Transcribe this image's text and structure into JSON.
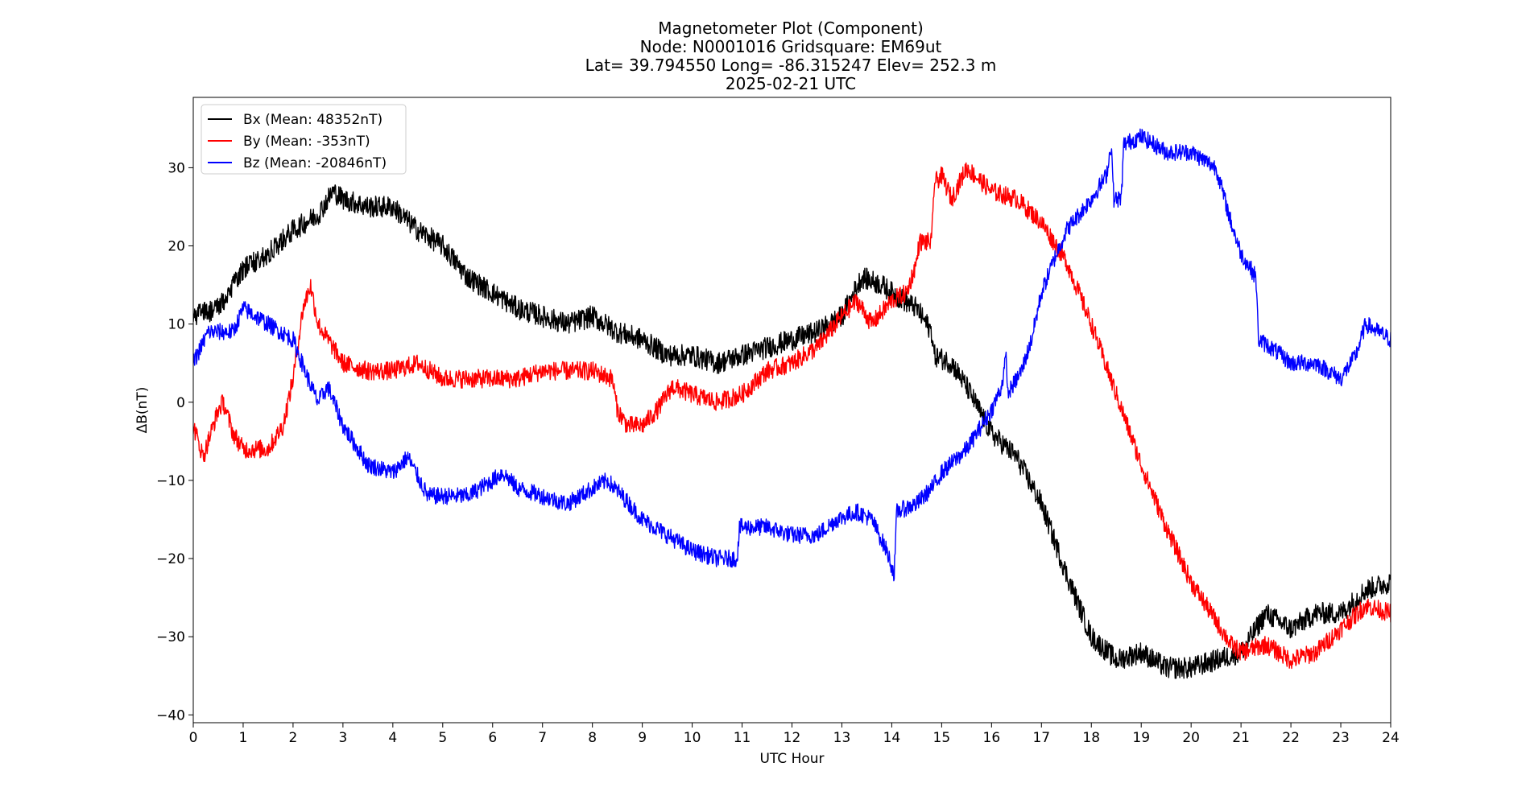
{
  "chart_data": {
    "type": "line",
    "title_lines": [
      "Magnetometer Plot (Component)",
      "Node:  N0001016     Gridsquare:  EM69ut",
      "Lat= 39.794550    Long= -86.315247    Elev= 252.3 m",
      "2025-02-21  UTC"
    ],
    "xlabel": "UTC Hour",
    "ylabel": "ΔB(nT)",
    "xlim": [
      0,
      24
    ],
    "ylim": [
      -41,
      39
    ],
    "xticks": [
      0,
      1,
      2,
      3,
      4,
      5,
      6,
      7,
      8,
      9,
      10,
      11,
      12,
      13,
      14,
      15,
      16,
      17,
      18,
      19,
      20,
      21,
      22,
      23,
      24
    ],
    "yticks": [
      -40,
      -30,
      -20,
      -10,
      0,
      10,
      20,
      30
    ],
    "legend_position": "top-left",
    "grid": false,
    "series": [
      {
        "name": "Bx (Mean: 48352nT)",
        "color": "#000000",
        "noise": 1.4,
        "points": [
          [
            0,
            11
          ],
          [
            0.5,
            12
          ],
          [
            1,
            17
          ],
          [
            1.5,
            19
          ],
          [
            2,
            22
          ],
          [
            2.5,
            24
          ],
          [
            2.8,
            27
          ],
          [
            3,
            26
          ],
          [
            3.5,
            25
          ],
          [
            4,
            25
          ],
          [
            4.5,
            22
          ],
          [
            5,
            20
          ],
          [
            5.5,
            16
          ],
          [
            6,
            14
          ],
          [
            6.5,
            12
          ],
          [
            7,
            11
          ],
          [
            7.5,
            10
          ],
          [
            8,
            11
          ],
          [
            8.5,
            9
          ],
          [
            9,
            8
          ],
          [
            9.5,
            6
          ],
          [
            10,
            6
          ],
          [
            10.5,
            5
          ],
          [
            11,
            6
          ],
          [
            11.5,
            7
          ],
          [
            12,
            8
          ],
          [
            12.5,
            9
          ],
          [
            13,
            11
          ],
          [
            13.4,
            16
          ],
          [
            13.8,
            15
          ],
          [
            14,
            14
          ],
          [
            14.5,
            12
          ],
          [
            14.8,
            9
          ],
          [
            14.85,
            6
          ],
          [
            15.2,
            5
          ],
          [
            15.5,
            2
          ],
          [
            16,
            -4
          ],
          [
            16.5,
            -7
          ],
          [
            17,
            -13
          ],
          [
            17.5,
            -22
          ],
          [
            18,
            -30
          ],
          [
            18.5,
            -33
          ],
          [
            19,
            -32
          ],
          [
            19.5,
            -34
          ],
          [
            20,
            -34
          ],
          [
            20.5,
            -33
          ],
          [
            21,
            -32
          ],
          [
            21.5,
            -27
          ],
          [
            22,
            -29
          ],
          [
            22.5,
            -27
          ],
          [
            23,
            -27
          ],
          [
            23.5,
            -24
          ],
          [
            24,
            -23
          ]
        ]
      },
      {
        "name": "By (Mean: -353nT)",
        "color": "#ff0000",
        "noise": 1.2,
        "points": [
          [
            0,
            -3
          ],
          [
            0.2,
            -7
          ],
          [
            0.5,
            -1
          ],
          [
            0.6,
            0
          ],
          [
            0.8,
            -4
          ],
          [
            1,
            -6
          ],
          [
            1.5,
            -6
          ],
          [
            1.8,
            -3
          ],
          [
            2,
            3
          ],
          [
            2.2,
            12
          ],
          [
            2.35,
            15
          ],
          [
            2.5,
            10
          ],
          [
            2.8,
            7
          ],
          [
            3,
            5
          ],
          [
            3.5,
            4
          ],
          [
            4,
            4
          ],
          [
            4.5,
            5
          ],
          [
            5,
            3
          ],
          [
            5.5,
            3
          ],
          [
            6,
            3
          ],
          [
            6.5,
            3
          ],
          [
            7,
            4
          ],
          [
            7.5,
            4
          ],
          [
            8,
            4
          ],
          [
            8.4,
            3
          ],
          [
            8.5,
            -1
          ],
          [
            8.7,
            -3
          ],
          [
            9,
            -3
          ],
          [
            9.3,
            -1
          ],
          [
            9.6,
            2
          ],
          [
            10,
            1
          ],
          [
            10.5,
            0
          ],
          [
            11,
            1
          ],
          [
            11.5,
            4
          ],
          [
            12,
            5
          ],
          [
            12.5,
            7
          ],
          [
            13,
            11
          ],
          [
            13.3,
            13
          ],
          [
            13.6,
            10
          ],
          [
            14,
            13
          ],
          [
            14.3,
            14
          ],
          [
            14.5,
            18
          ],
          [
            14.55,
            20.5
          ],
          [
            14.8,
            20.5
          ],
          [
            14.85,
            28
          ],
          [
            15,
            29
          ],
          [
            15.2,
            26
          ],
          [
            15.5,
            30
          ],
          [
            16,
            27
          ],
          [
            16.5,
            26
          ],
          [
            17,
            23
          ],
          [
            17.5,
            18
          ],
          [
            18,
            10
          ],
          [
            18.5,
            1
          ],
          [
            19,
            -8
          ],
          [
            19.5,
            -16
          ],
          [
            20,
            -23
          ],
          [
            20.5,
            -28
          ],
          [
            20.8,
            -31
          ],
          [
            21,
            -32
          ],
          [
            21.5,
            -31
          ],
          [
            22,
            -33
          ],
          [
            22.5,
            -32
          ],
          [
            23,
            -29
          ],
          [
            23.5,
            -26
          ],
          [
            24,
            -27
          ]
        ]
      },
      {
        "name": "Bz (Mean: -20846nT)",
        "color": "#0000ff",
        "noise": 1.1,
        "points": [
          [
            0,
            5
          ],
          [
            0.3,
            9
          ],
          [
            0.8,
            9
          ],
          [
            1,
            12
          ],
          [
            1.5,
            10
          ],
          [
            2,
            8
          ],
          [
            2.3,
            3
          ],
          [
            2.5,
            0
          ],
          [
            2.7,
            2
          ],
          [
            3,
            -3
          ],
          [
            3.5,
            -8
          ],
          [
            4,
            -9
          ],
          [
            4.3,
            -7
          ],
          [
            4.7,
            -12
          ],
          [
            5,
            -12
          ],
          [
            5.5,
            -12
          ],
          [
            6,
            -10
          ],
          [
            6.2,
            -9
          ],
          [
            6.5,
            -11
          ],
          [
            7,
            -12
          ],
          [
            7.5,
            -13
          ],
          [
            8,
            -11
          ],
          [
            8.3,
            -10
          ],
          [
            8.6,
            -12
          ],
          [
            9,
            -15
          ],
          [
            9.5,
            -17
          ],
          [
            10,
            -19
          ],
          [
            10.5,
            -20
          ],
          [
            10.9,
            -20
          ],
          [
            10.95,
            -16
          ],
          [
            11.5,
            -16
          ],
          [
            12,
            -17
          ],
          [
            12.5,
            -17
          ],
          [
            12.9,
            -15
          ],
          [
            13.3,
            -14
          ],
          [
            13.6,
            -15
          ],
          [
            13.9,
            -19
          ],
          [
            14.05,
            -22
          ],
          [
            14.1,
            -14
          ],
          [
            14.5,
            -13
          ],
          [
            14.8,
            -11
          ],
          [
            15,
            -9
          ],
          [
            15.5,
            -6
          ],
          [
            16,
            -1
          ],
          [
            16.2,
            2
          ],
          [
            16.3,
            6
          ],
          [
            16.32,
            1
          ],
          [
            16.6,
            4
          ],
          [
            16.8,
            8
          ],
          [
            17,
            14
          ],
          [
            17.3,
            19
          ],
          [
            17.5,
            22
          ],
          [
            18,
            26
          ],
          [
            18.3,
            29
          ],
          [
            18.4,
            33
          ],
          [
            18.45,
            26
          ],
          [
            18.6,
            26
          ],
          [
            18.65,
            33
          ],
          [
            19,
            34
          ],
          [
            19.5,
            32
          ],
          [
            20,
            32
          ],
          [
            20.5,
            30
          ],
          [
            20.8,
            23
          ],
          [
            21,
            19
          ],
          [
            21.3,
            16
          ],
          [
            21.35,
            8
          ],
          [
            21.6,
            7
          ],
          [
            22,
            5
          ],
          [
            22.5,
            5
          ],
          [
            23,
            3
          ],
          [
            23.3,
            6
          ],
          [
            23.5,
            10
          ],
          [
            24,
            8
          ]
        ]
      }
    ]
  }
}
